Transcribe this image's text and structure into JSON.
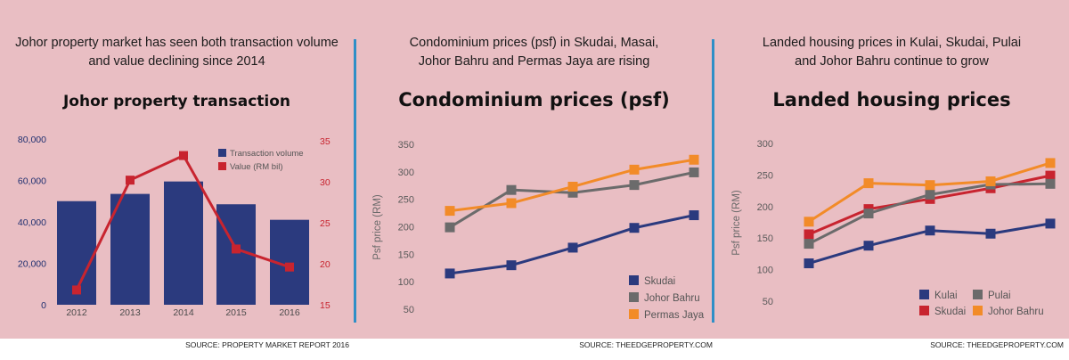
{
  "panels": [
    {
      "subtitle_line1": "Johor property market has seen both transaction volume",
      "subtitle_line2": "and value declining since 2014",
      "source": "SOURCE: PROPERTY MARKET REPORT 2016"
    },
    {
      "subtitle_line1": "Condominium prices (psf) in Skudai, Masai,",
      "subtitle_line2": "Johor Bahru and Permas Jaya are rising",
      "source": "SOURCE: THEEDGEPROPERTY.COM"
    },
    {
      "subtitle_line1": "Landed housing prices in Kulai, Skudai, Pulai",
      "subtitle_line2": "and Johor Bahru continue to grow",
      "source": "SOURCE: THEEDGEPROPERTY.COM"
    }
  ],
  "colors": {
    "background": "#e9bec3",
    "divider": "#2f8fc7",
    "navy": "#2b3a7e",
    "red": "#c8242f",
    "gray": "#6b6b6b",
    "orange": "#f28b28"
  },
  "chart_data": [
    {
      "type": "bar",
      "title": "Johor property transaction",
      "categories": [
        "2012",
        "2013",
        "2014",
        "2015",
        "2016"
      ],
      "series": [
        {
          "name": "Transaction volume",
          "axis": "left",
          "type": "bar",
          "color": "#2b3a7e",
          "values": [
            50000,
            53500,
            59500,
            48500,
            41000
          ]
        },
        {
          "name": "Value (RM bil)",
          "axis": "right",
          "type": "line",
          "color": "#c8242f",
          "values": [
            16.8,
            30.2,
            33.2,
            21.8,
            19.6
          ]
        }
      ],
      "ylim_left": [
        0,
        80000
      ],
      "yticks_left": [
        "0",
        "20,000",
        "40,000",
        "60,000",
        "80,000"
      ],
      "ylim_right": [
        15,
        35
      ],
      "yticks_right": [
        "15",
        "20",
        "25",
        "30",
        "35"
      ],
      "legend_position": "top-right"
    },
    {
      "type": "line",
      "title": "Condominium prices (psf)",
      "ylabel": "Psf price (RM)",
      "ylim": [
        50,
        350
      ],
      "yticks": [
        "50",
        "100",
        "150",
        "200",
        "250",
        "300",
        "350"
      ],
      "series": [
        {
          "name": "Skudai",
          "color": "#2b3a7e",
          "values": [
            115,
            130,
            162,
            198,
            221
          ]
        },
        {
          "name": "Johor Bahru",
          "color": "#6b6b6b",
          "values": [
            199,
            267,
            262,
            276,
            299
          ]
        },
        {
          "name": "Permas Jaya",
          "color": "#f28b28",
          "values": [
            229,
            243,
            273,
            304,
            322
          ]
        }
      ],
      "legend_position": "bottom-right"
    },
    {
      "type": "line",
      "title": "Landed housing prices",
      "ylabel": "Psf price (RM)",
      "ylim": [
        50,
        300
      ],
      "yticks": [
        "50",
        "100",
        "150",
        "200",
        "250",
        "300"
      ],
      "series": [
        {
          "name": "Kulai",
          "color": "#2b3a7e",
          "values": [
            110,
            138,
            162,
            157,
            173
          ]
        },
        {
          "name": "Skudai",
          "color": "#c8242f",
          "values": [
            156,
            196,
            212,
            229,
            249
          ]
        },
        {
          "name": "Pulai",
          "color": "#6b6b6b",
          "values": [
            141,
            189,
            219,
            235,
            236
          ]
        },
        {
          "name": "Johor Bahru",
          "color": "#f28b28",
          "values": [
            176,
            237,
            234,
            240,
            269
          ]
        }
      ],
      "legend_position": "bottom-right"
    }
  ]
}
